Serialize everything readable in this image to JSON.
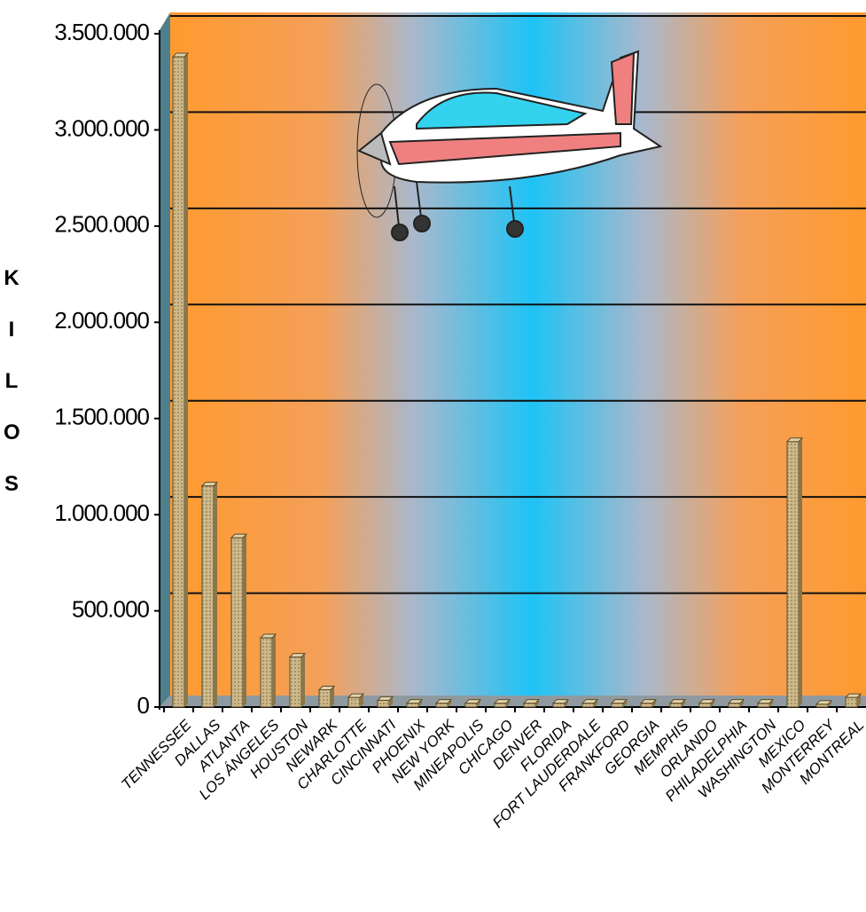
{
  "chart_data": {
    "type": "bar",
    "y_label": "KILOS",
    "categories": [
      "TENNESSEE",
      "DALLAS",
      "ATLANTA",
      "LOS ÁNGELES",
      "HOUSTON",
      "NEWARK",
      "CHARLOTTE",
      "CINCINNATI",
      "PHOENIX",
      "NEW YORK",
      "MINEAPOLIS",
      "CHICAGO",
      "DENVER",
      "FLORIDA",
      "FORT LAUDERDALE",
      "FRANKFORD",
      "GEORGIA",
      "MEMPHIS",
      "ORLANDO",
      "PHILADELPHIA",
      "WASHINGTON",
      "MEXICO",
      "MONTERREY",
      "MONTREAL"
    ],
    "values": [
      3380000,
      1150000,
      880000,
      360000,
      260000,
      90000,
      50000,
      35000,
      20000,
      20000,
      20000,
      20000,
      20000,
      20000,
      20000,
      20000,
      20000,
      20000,
      20000,
      20000,
      20000,
      1380000,
      15000,
      50000
    ],
    "color": "#c9b487",
    "ylim": [
      0,
      3500000
    ],
    "yticks": [
      {
        "value": 0,
        "label": "0"
      },
      {
        "value": 500000,
        "label": "500.000"
      },
      {
        "value": 1000000,
        "label": "1.000.000"
      },
      {
        "value": 1500000,
        "label": "1.500.000"
      },
      {
        "value": 2000000,
        "label": "2.000.000"
      },
      {
        "value": 2500000,
        "label": "2.500.000"
      },
      {
        "value": 3000000,
        "label": "3.000.000"
      },
      {
        "value": 3500000,
        "label": "3.500.000"
      }
    ],
    "grid": true
  }
}
